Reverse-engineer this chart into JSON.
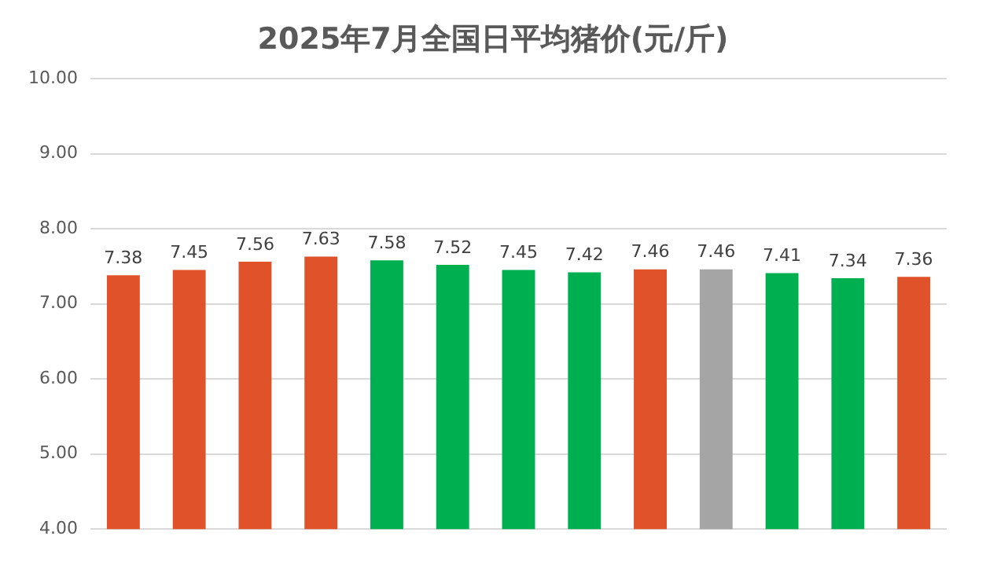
{
  "chart_data": {
    "type": "bar",
    "title": "2025年7月全国日平均猪价(元/斤)",
    "categories": [
      null,
      null,
      null,
      null,
      null,
      null,
      null,
      null,
      null,
      null,
      null,
      null,
      null
    ],
    "values": [
      7.38,
      7.45,
      7.56,
      7.63,
      7.58,
      7.52,
      7.45,
      7.42,
      7.46,
      7.46,
      7.41,
      7.34,
      7.36
    ],
    "colors": [
      "#e0522a",
      "#e0522a",
      "#e0522a",
      "#e0522a",
      "#00b050",
      "#00b050",
      "#00b050",
      "#00b050",
      "#e0522a",
      "#a5a5a5",
      "#00b050",
      "#00b050",
      "#e0522a"
    ],
    "ylim": [
      4,
      10
    ],
    "yticks": [
      {
        "value": 4,
        "label": "4.00"
      },
      {
        "value": 5,
        "label": "5.00"
      },
      {
        "value": 6,
        "label": "6.00"
      },
      {
        "value": 7,
        "label": "7.00"
      },
      {
        "value": 8,
        "label": "8.00"
      },
      {
        "value": 9,
        "label": "9.00"
      },
      {
        "value": 10,
        "label": "10.00"
      }
    ],
    "grid": "y",
    "data_labels": true,
    "legend": false
  }
}
